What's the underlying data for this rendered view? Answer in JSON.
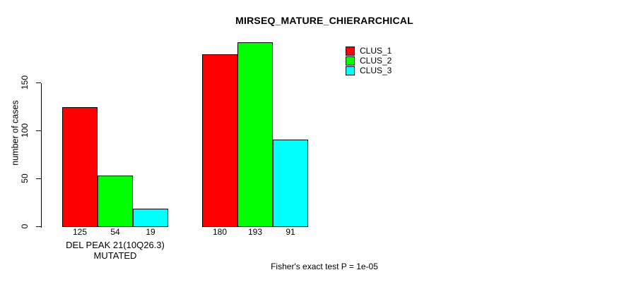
{
  "title": "MIRSEQ_MATURE_CHIERARCHICAL",
  "footer": "Fisher's exact test P = 1e-05",
  "y_axis": {
    "label": "number of cases",
    "ticks": [
      0,
      50,
      100,
      150
    ]
  },
  "legend": {
    "position": "top-right",
    "items": [
      {
        "label": "CLUS_1",
        "color": "#ff0000"
      },
      {
        "label": "CLUS_2",
        "color": "#00ff00"
      },
      {
        "label": "CLUS_3",
        "color": "#00ffff"
      }
    ]
  },
  "chart_data": {
    "type": "bar",
    "grouped": true,
    "title": "MIRSEQ_MATURE_CHIERARCHICAL",
    "ylabel": "number of cases",
    "xlabel": "DEL PEAK 21(10Q26.3) MUTATED",
    "series": [
      "CLUS_1",
      "CLUS_2",
      "CLUS_3"
    ],
    "colors": [
      "#ff0000",
      "#00ff00",
      "#00ffff"
    ],
    "groups": [
      {
        "label": "DEL PEAK 21(10Q26.3) MUTATED",
        "values": [
          125,
          54,
          19
        ]
      },
      {
        "label": "",
        "values": [
          180,
          193,
          91
        ]
      }
    ],
    "bar_value_labels": [
      125,
      54,
      19,
      180,
      193,
      91
    ],
    "yticks": [
      0,
      50,
      100,
      150
    ],
    "ylim": [
      0,
      195
    ],
    "grid": false,
    "legend_position": "top-right",
    "annotation": "Fisher's exact test P = 1e-05"
  }
}
